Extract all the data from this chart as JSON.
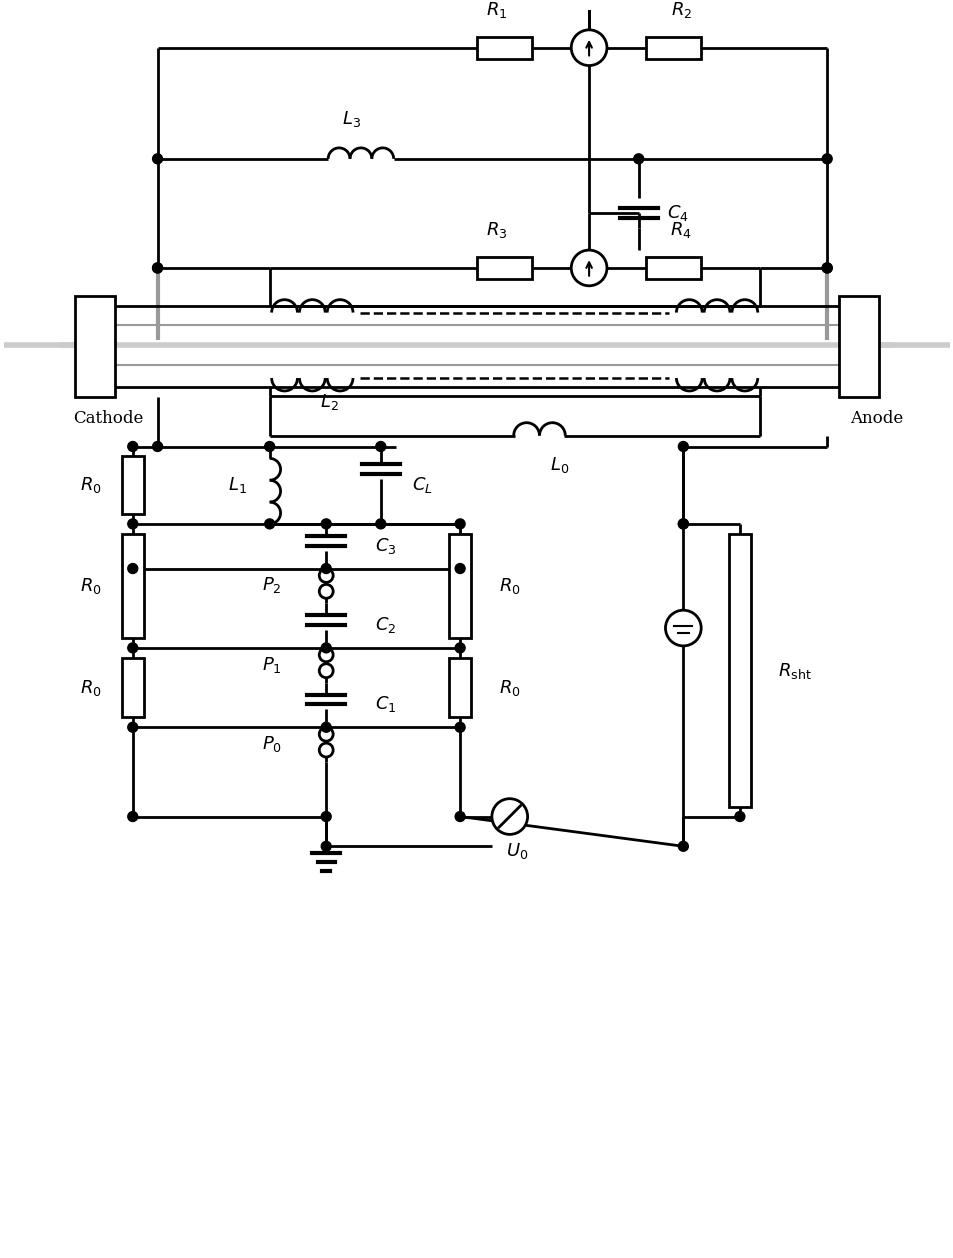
{
  "fig_width": 9.54,
  "fig_height": 12.58,
  "dpi": 100,
  "lw": 2.0,
  "gray": "#999999",
  "light_gray": "#cccccc"
}
